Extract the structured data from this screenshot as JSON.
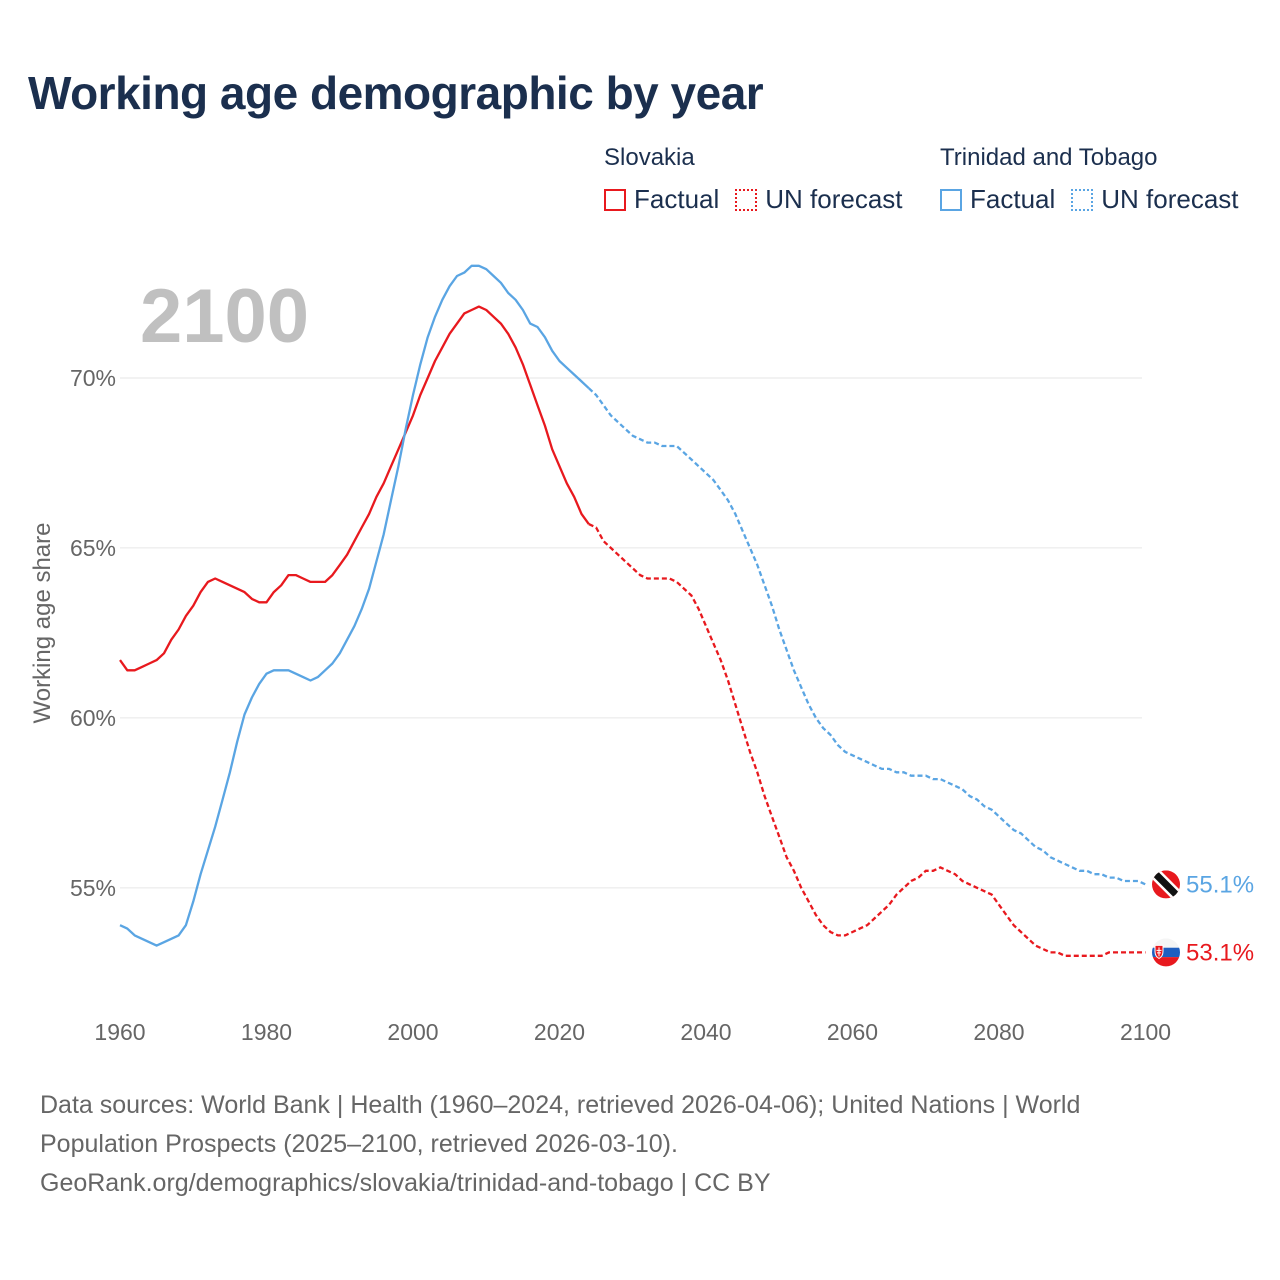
{
  "title": "Working age demographic by year",
  "legend": {
    "groups": [
      {
        "name": "Slovakia",
        "factual_label": "Factual",
        "forecast_label": "UN forecast",
        "color": "#e8191e"
      },
      {
        "name": "Trinidad and Tobago",
        "factual_label": "Factual",
        "forecast_label": "UN forecast",
        "color": "#5aa5e3"
      }
    ]
  },
  "year_watermark": "2100",
  "footer": {
    "line1": "Data sources: World Bank | Health (1960–2024, retrieved 2026-04-06); United Nations | World",
    "line2": "Population Prospects (2025–2100, retrieved 2026-03-10).",
    "line3": "GeoRank.org/demographics/slovakia/trinidad-and-tobago | CC BY"
  },
  "chart_data": {
    "type": "line",
    "title": "Working age demographic by year",
    "xlabel": "",
    "ylabel": "Working age share",
    "xlim": [
      1960,
      2103
    ],
    "ylim": [
      51.2,
      73.5
    ],
    "x_ticks": [
      1960,
      1980,
      2000,
      2020,
      2040,
      2060,
      2080,
      2100
    ],
    "y_ticks": [
      55,
      60,
      65,
      70
    ],
    "y_tick_labels": [
      "55%",
      "60%",
      "65%",
      "70%"
    ],
    "grid": true,
    "factual_end_year": 2024,
    "series": [
      {
        "name": "Slovakia",
        "color": "#e8191e",
        "end_label": "53.1%",
        "points": [
          [
            1960,
            61.7
          ],
          [
            1961,
            61.4
          ],
          [
            1962,
            61.4
          ],
          [
            1963,
            61.5
          ],
          [
            1964,
            61.6
          ],
          [
            1965,
            61.7
          ],
          [
            1966,
            61.9
          ],
          [
            1967,
            62.3
          ],
          [
            1968,
            62.6
          ],
          [
            1969,
            63.0
          ],
          [
            1970,
            63.3
          ],
          [
            1971,
            63.7
          ],
          [
            1972,
            64.0
          ],
          [
            1973,
            64.1
          ],
          [
            1974,
            64.0
          ],
          [
            1975,
            63.9
          ],
          [
            1976,
            63.8
          ],
          [
            1977,
            63.7
          ],
          [
            1978,
            63.5
          ],
          [
            1979,
            63.4
          ],
          [
            1980,
            63.4
          ],
          [
            1981,
            63.7
          ],
          [
            1982,
            63.9
          ],
          [
            1983,
            64.2
          ],
          [
            1984,
            64.2
          ],
          [
            1985,
            64.1
          ],
          [
            1986,
            64.0
          ],
          [
            1987,
            64.0
          ],
          [
            1988,
            64.0
          ],
          [
            1989,
            64.2
          ],
          [
            1990,
            64.5
          ],
          [
            1991,
            64.8
          ],
          [
            1992,
            65.2
          ],
          [
            1993,
            65.6
          ],
          [
            1994,
            66.0
          ],
          [
            1995,
            66.5
          ],
          [
            1996,
            66.9
          ],
          [
            1997,
            67.4
          ],
          [
            1998,
            67.9
          ],
          [
            1999,
            68.4
          ],
          [
            2000,
            68.9
          ],
          [
            2001,
            69.5
          ],
          [
            2002,
            70.0
          ],
          [
            2003,
            70.5
          ],
          [
            2004,
            70.9
          ],
          [
            2005,
            71.3
          ],
          [
            2006,
            71.6
          ],
          [
            2007,
            71.9
          ],
          [
            2008,
            72.0
          ],
          [
            2009,
            72.1
          ],
          [
            2010,
            72.0
          ],
          [
            2011,
            71.8
          ],
          [
            2012,
            71.6
          ],
          [
            2013,
            71.3
          ],
          [
            2014,
            70.9
          ],
          [
            2015,
            70.4
          ],
          [
            2016,
            69.8
          ],
          [
            2017,
            69.2
          ],
          [
            2018,
            68.6
          ],
          [
            2019,
            67.9
          ],
          [
            2020,
            67.4
          ],
          [
            2021,
            66.9
          ],
          [
            2022,
            66.5
          ],
          [
            2023,
            66.0
          ],
          [
            2024,
            65.7
          ],
          [
            2025,
            65.6
          ],
          [
            2026,
            65.2
          ],
          [
            2027,
            65.0
          ],
          [
            2028,
            64.8
          ],
          [
            2029,
            64.6
          ],
          [
            2030,
            64.4
          ],
          [
            2031,
            64.2
          ],
          [
            2032,
            64.1
          ],
          [
            2033,
            64.1
          ],
          [
            2034,
            64.1
          ],
          [
            2035,
            64.1
          ],
          [
            2036,
            64.0
          ],
          [
            2037,
            63.8
          ],
          [
            2038,
            63.6
          ],
          [
            2039,
            63.2
          ],
          [
            2040,
            62.7
          ],
          [
            2041,
            62.2
          ],
          [
            2042,
            61.7
          ],
          [
            2043,
            61.1
          ],
          [
            2044,
            60.4
          ],
          [
            2045,
            59.7
          ],
          [
            2046,
            59.0
          ],
          [
            2047,
            58.4
          ],
          [
            2048,
            57.7
          ],
          [
            2049,
            57.1
          ],
          [
            2050,
            56.5
          ],
          [
            2051,
            55.9
          ],
          [
            2052,
            55.5
          ],
          [
            2053,
            55.0
          ],
          [
            2054,
            54.6
          ],
          [
            2055,
            54.2
          ],
          [
            2056,
            53.9
          ],
          [
            2057,
            53.7
          ],
          [
            2058,
            53.6
          ],
          [
            2059,
            53.6
          ],
          [
            2060,
            53.7
          ],
          [
            2061,
            53.8
          ],
          [
            2062,
            53.9
          ],
          [
            2063,
            54.1
          ],
          [
            2064,
            54.3
          ],
          [
            2065,
            54.5
          ],
          [
            2066,
            54.8
          ],
          [
            2067,
            55.0
          ],
          [
            2068,
            55.2
          ],
          [
            2069,
            55.3
          ],
          [
            2070,
            55.5
          ],
          [
            2071,
            55.5
          ],
          [
            2072,
            55.6
          ],
          [
            2073,
            55.5
          ],
          [
            2074,
            55.4
          ],
          [
            2075,
            55.2
          ],
          [
            2076,
            55.1
          ],
          [
            2077,
            55.0
          ],
          [
            2078,
            54.9
          ],
          [
            2079,
            54.8
          ],
          [
            2080,
            54.5
          ],
          [
            2081,
            54.2
          ],
          [
            2082,
            53.9
          ],
          [
            2083,
            53.7
          ],
          [
            2084,
            53.5
          ],
          [
            2085,
            53.3
          ],
          [
            2086,
            53.2
          ],
          [
            2087,
            53.1
          ],
          [
            2088,
            53.1
          ],
          [
            2089,
            53.0
          ],
          [
            2090,
            53.0
          ],
          [
            2091,
            53.0
          ],
          [
            2092,
            53.0
          ],
          [
            2093,
            53.0
          ],
          [
            2094,
            53.0
          ],
          [
            2095,
            53.1
          ],
          [
            2096,
            53.1
          ],
          [
            2097,
            53.1
          ],
          [
            2098,
            53.1
          ],
          [
            2099,
            53.1
          ],
          [
            2100,
            53.1
          ]
        ]
      },
      {
        "name": "Trinidad and Tobago",
        "color": "#5aa5e3",
        "end_label": "55.1%",
        "points": [
          [
            1960,
            53.9
          ],
          [
            1961,
            53.8
          ],
          [
            1962,
            53.6
          ],
          [
            1963,
            53.5
          ],
          [
            1964,
            53.4
          ],
          [
            1965,
            53.3
          ],
          [
            1966,
            53.4
          ],
          [
            1967,
            53.5
          ],
          [
            1968,
            53.6
          ],
          [
            1969,
            53.9
          ],
          [
            1970,
            54.6
          ],
          [
            1971,
            55.4
          ],
          [
            1972,
            56.1
          ],
          [
            1973,
            56.8
          ],
          [
            1974,
            57.6
          ],
          [
            1975,
            58.4
          ],
          [
            1976,
            59.3
          ],
          [
            1977,
            60.1
          ],
          [
            1978,
            60.6
          ],
          [
            1979,
            61.0
          ],
          [
            1980,
            61.3
          ],
          [
            1981,
            61.4
          ],
          [
            1982,
            61.4
          ],
          [
            1983,
            61.4
          ],
          [
            1984,
            61.3
          ],
          [
            1985,
            61.2
          ],
          [
            1986,
            61.1
          ],
          [
            1987,
            61.2
          ],
          [
            1988,
            61.4
          ],
          [
            1989,
            61.6
          ],
          [
            1990,
            61.9
          ],
          [
            1991,
            62.3
          ],
          [
            1992,
            62.7
          ],
          [
            1993,
            63.2
          ],
          [
            1994,
            63.8
          ],
          [
            1995,
            64.6
          ],
          [
            1996,
            65.4
          ],
          [
            1997,
            66.4
          ],
          [
            1998,
            67.4
          ],
          [
            1999,
            68.5
          ],
          [
            2000,
            69.5
          ],
          [
            2001,
            70.4
          ],
          [
            2002,
            71.2
          ],
          [
            2003,
            71.8
          ],
          [
            2004,
            72.3
          ],
          [
            2005,
            72.7
          ],
          [
            2006,
            73.0
          ],
          [
            2007,
            73.1
          ],
          [
            2008,
            73.3
          ],
          [
            2009,
            73.3
          ],
          [
            2010,
            73.2
          ],
          [
            2011,
            73.0
          ],
          [
            2012,
            72.8
          ],
          [
            2013,
            72.5
          ],
          [
            2014,
            72.3
          ],
          [
            2015,
            72.0
          ],
          [
            2016,
            71.6
          ],
          [
            2017,
            71.5
          ],
          [
            2018,
            71.2
          ],
          [
            2019,
            70.8
          ],
          [
            2020,
            70.5
          ],
          [
            2021,
            70.3
          ],
          [
            2022,
            70.1
          ],
          [
            2023,
            69.9
          ],
          [
            2024,
            69.7
          ],
          [
            2025,
            69.5
          ],
          [
            2026,
            69.2
          ],
          [
            2027,
            68.9
          ],
          [
            2028,
            68.7
          ],
          [
            2029,
            68.5
          ],
          [
            2030,
            68.3
          ],
          [
            2031,
            68.2
          ],
          [
            2032,
            68.1
          ],
          [
            2033,
            68.1
          ],
          [
            2034,
            68.0
          ],
          [
            2035,
            68.0
          ],
          [
            2036,
            68.0
          ],
          [
            2037,
            67.8
          ],
          [
            2038,
            67.6
          ],
          [
            2039,
            67.4
          ],
          [
            2040,
            67.2
          ],
          [
            2041,
            67.0
          ],
          [
            2042,
            66.7
          ],
          [
            2043,
            66.4
          ],
          [
            2044,
            66.0
          ],
          [
            2045,
            65.5
          ],
          [
            2046,
            65.0
          ],
          [
            2047,
            64.5
          ],
          [
            2048,
            63.9
          ],
          [
            2049,
            63.3
          ],
          [
            2050,
            62.6
          ],
          [
            2051,
            62.0
          ],
          [
            2052,
            61.4
          ],
          [
            2053,
            60.9
          ],
          [
            2054,
            60.4
          ],
          [
            2055,
            60.0
          ],
          [
            2056,
            59.7
          ],
          [
            2057,
            59.5
          ],
          [
            2058,
            59.2
          ],
          [
            2059,
            59.0
          ],
          [
            2060,
            58.9
          ],
          [
            2061,
            58.8
          ],
          [
            2062,
            58.7
          ],
          [
            2063,
            58.6
          ],
          [
            2064,
            58.5
          ],
          [
            2065,
            58.5
          ],
          [
            2066,
            58.4
          ],
          [
            2067,
            58.4
          ],
          [
            2068,
            58.3
          ],
          [
            2069,
            58.3
          ],
          [
            2070,
            58.3
          ],
          [
            2071,
            58.2
          ],
          [
            2072,
            58.2
          ],
          [
            2073,
            58.1
          ],
          [
            2074,
            58.0
          ],
          [
            2075,
            57.9
          ],
          [
            2076,
            57.7
          ],
          [
            2077,
            57.6
          ],
          [
            2078,
            57.4
          ],
          [
            2079,
            57.3
          ],
          [
            2080,
            57.1
          ],
          [
            2081,
            56.9
          ],
          [
            2082,
            56.7
          ],
          [
            2083,
            56.6
          ],
          [
            2084,
            56.4
          ],
          [
            2085,
            56.2
          ],
          [
            2086,
            56.1
          ],
          [
            2087,
            55.9
          ],
          [
            2088,
            55.8
          ],
          [
            2089,
            55.7
          ],
          [
            2090,
            55.6
          ],
          [
            2091,
            55.5
          ],
          [
            2092,
            55.5
          ],
          [
            2093,
            55.4
          ],
          [
            2094,
            55.4
          ],
          [
            2095,
            55.3
          ],
          [
            2096,
            55.3
          ],
          [
            2097,
            55.2
          ],
          [
            2098,
            55.2
          ],
          [
            2099,
            55.2
          ],
          [
            2100,
            55.1
          ]
        ]
      }
    ]
  }
}
